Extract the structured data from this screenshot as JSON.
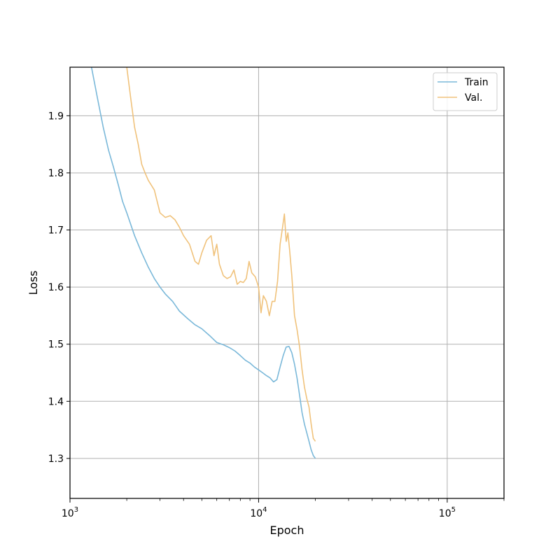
{
  "chart_data": {
    "type": "line",
    "xlabel": "Epoch",
    "ylabel": "Loss",
    "x_scale": "log",
    "xlim": [
      1000,
      200000
    ],
    "ylim": [
      1.23,
      1.985
    ],
    "grid": true,
    "legend_position": "top-right",
    "x_major_ticks": [
      {
        "value": 1000,
        "base": "10",
        "exp": "3"
      },
      {
        "value": 10000,
        "base": "10",
        "exp": "4"
      },
      {
        "value": 100000,
        "base": "10",
        "exp": "5"
      }
    ],
    "y_ticks": [
      {
        "value": 1.3,
        "label": "1.3"
      },
      {
        "value": 1.4,
        "label": "1.4"
      },
      {
        "value": 1.5,
        "label": "1.5"
      },
      {
        "value": 1.6,
        "label": "1.6"
      },
      {
        "value": 1.7,
        "label": "1.7"
      },
      {
        "value": 1.8,
        "label": "1.8"
      },
      {
        "value": 1.9,
        "label": "1.9"
      }
    ],
    "series": [
      {
        "name": "Train",
        "color": "#7ab8d9",
        "points": [
          [
            1300,
            1.985
          ],
          [
            1400,
            1.93
          ],
          [
            1500,
            1.88
          ],
          [
            1600,
            1.84
          ],
          [
            1700,
            1.81
          ],
          [
            1800,
            1.78
          ],
          [
            1900,
            1.75
          ],
          [
            2000,
            1.73
          ],
          [
            2200,
            1.69
          ],
          [
            2400,
            1.66
          ],
          [
            2600,
            1.635
          ],
          [
            2800,
            1.615
          ],
          [
            3000,
            1.6
          ],
          [
            3200,
            1.588
          ],
          [
            3500,
            1.575
          ],
          [
            3800,
            1.558
          ],
          [
            4200,
            1.545
          ],
          [
            4600,
            1.534
          ],
          [
            5000,
            1.527
          ],
          [
            5500,
            1.515
          ],
          [
            6000,
            1.503
          ],
          [
            6500,
            1.499
          ],
          [
            7000,
            1.494
          ],
          [
            7500,
            1.488
          ],
          [
            8000,
            1.48
          ],
          [
            8500,
            1.472
          ],
          [
            9000,
            1.467
          ],
          [
            9500,
            1.46
          ],
          [
            10000,
            1.455
          ],
          [
            10500,
            1.45
          ],
          [
            11000,
            1.445
          ],
          [
            11500,
            1.441
          ],
          [
            12000,
            1.434
          ],
          [
            12500,
            1.438
          ],
          [
            13000,
            1.46
          ],
          [
            13500,
            1.48
          ],
          [
            14000,
            1.495
          ],
          [
            14500,
            1.496
          ],
          [
            15000,
            1.485
          ],
          [
            15500,
            1.465
          ],
          [
            16000,
            1.44
          ],
          [
            16500,
            1.41
          ],
          [
            17000,
            1.38
          ],
          [
            17500,
            1.36
          ],
          [
            18000,
            1.345
          ],
          [
            18500,
            1.33
          ],
          [
            19000,
            1.315
          ],
          [
            19500,
            1.305
          ],
          [
            20000,
            1.3
          ]
        ]
      },
      {
        "name": "Val.",
        "color": "#f0c27b",
        "points": [
          [
            2000,
            1.985
          ],
          [
            2100,
            1.93
          ],
          [
            2200,
            1.88
          ],
          [
            2300,
            1.85
          ],
          [
            2400,
            1.815
          ],
          [
            2500,
            1.8
          ],
          [
            2600,
            1.787
          ],
          [
            2800,
            1.77
          ],
          [
            3000,
            1.73
          ],
          [
            3200,
            1.722
          ],
          [
            3400,
            1.725
          ],
          [
            3600,
            1.718
          ],
          [
            3800,
            1.705
          ],
          [
            4000,
            1.69
          ],
          [
            4300,
            1.675
          ],
          [
            4600,
            1.645
          ],
          [
            4800,
            1.64
          ],
          [
            5000,
            1.66
          ],
          [
            5300,
            1.682
          ],
          [
            5600,
            1.69
          ],
          [
            5800,
            1.655
          ],
          [
            6000,
            1.675
          ],
          [
            6200,
            1.64
          ],
          [
            6500,
            1.62
          ],
          [
            6800,
            1.615
          ],
          [
            7100,
            1.618
          ],
          [
            7400,
            1.63
          ],
          [
            7700,
            1.605
          ],
          [
            8000,
            1.61
          ],
          [
            8300,
            1.608
          ],
          [
            8600,
            1.615
          ],
          [
            8900,
            1.645
          ],
          [
            9200,
            1.625
          ],
          [
            9600,
            1.618
          ],
          [
            10000,
            1.6
          ],
          [
            10300,
            1.555
          ],
          [
            10600,
            1.585
          ],
          [
            11000,
            1.575
          ],
          [
            11400,
            1.55
          ],
          [
            11800,
            1.575
          ],
          [
            12200,
            1.575
          ],
          [
            12600,
            1.61
          ],
          [
            13000,
            1.675
          ],
          [
            13400,
            1.705
          ],
          [
            13700,
            1.728
          ],
          [
            14000,
            1.68
          ],
          [
            14300,
            1.695
          ],
          [
            14600,
            1.665
          ],
          [
            15000,
            1.62
          ],
          [
            15500,
            1.55
          ],
          [
            16000,
            1.525
          ],
          [
            16500,
            1.495
          ],
          [
            17000,
            1.455
          ],
          [
            17500,
            1.425
          ],
          [
            18000,
            1.405
          ],
          [
            18500,
            1.39
          ],
          [
            19000,
            1.36
          ],
          [
            19500,
            1.335
          ],
          [
            20000,
            1.33
          ]
        ]
      }
    ]
  }
}
